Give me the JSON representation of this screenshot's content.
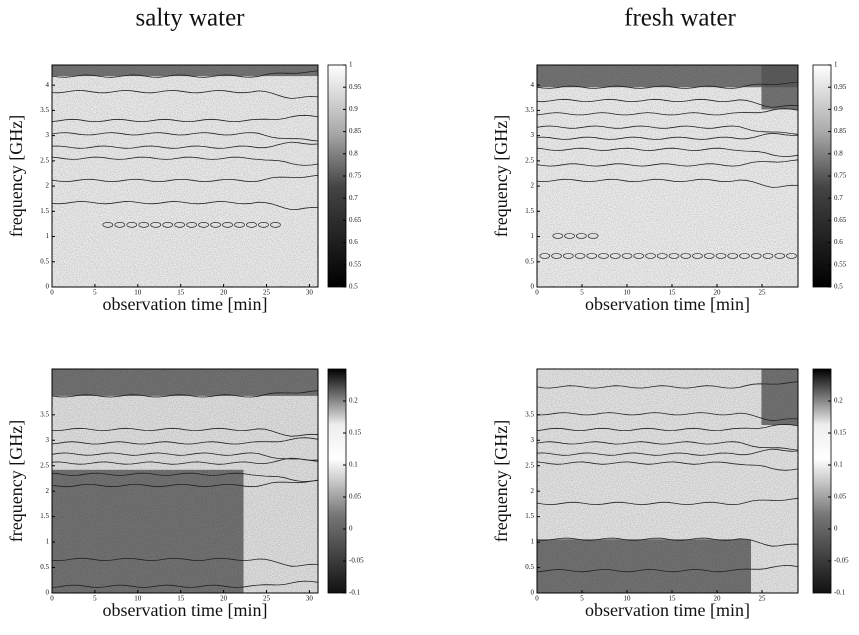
{
  "chart_data": [
    {
      "type": "contour",
      "title": "salty water",
      "xlabel": "observation time [min]",
      "ylabel": "frequency [GHz]",
      "xlim": [
        0,
        31
      ],
      "xticks": [
        0,
        5,
        10,
        15,
        20,
        25,
        30
      ],
      "ylim": [
        0,
        4.4
      ],
      "yticks": [
        0,
        0.5,
        1,
        1.5,
        2,
        2.5,
        3,
        3.5,
        4
      ],
      "clim": [
        0.5,
        1
      ],
      "cticks": [
        0.5,
        0.55,
        0.6,
        0.65,
        0.7,
        0.75,
        0.8,
        0.85,
        0.9,
        0.95,
        1
      ]
    },
    {
      "type": "contour",
      "title": "fresh water",
      "xlabel": "observation time [min]",
      "ylabel": "frequency [GHz]",
      "xlim": [
        0,
        29
      ],
      "xticks": [
        0,
        5,
        10,
        15,
        20,
        25
      ],
      "ylim": [
        0,
        4.4
      ],
      "yticks": [
        0,
        0.5,
        1,
        1.5,
        2,
        2.5,
        3,
        3.5,
        4
      ],
      "clim": [
        0.5,
        1
      ],
      "cticks": [
        0.5,
        0.55,
        0.6,
        0.65,
        0.7,
        0.75,
        0.8,
        0.85,
        0.9,
        0.95,
        1
      ]
    },
    {
      "type": "contour",
      "xlabel": "observation time [min]",
      "ylabel": "frequency [GHz]",
      "xlim": [
        0,
        31
      ],
      "xticks": [
        0,
        5,
        10,
        15,
        20,
        25,
        30
      ],
      "ylim": [
        0,
        4.4
      ],
      "yticks": [
        0,
        0.5,
        1,
        1.5,
        2,
        2.5,
        3,
        3.5
      ],
      "clim": [
        -0.1,
        0.25
      ],
      "cticks": [
        -0.1,
        -0.05,
        0,
        0.05,
        0.1,
        0.15,
        0.2
      ]
    },
    {
      "type": "contour",
      "xlabel": "observation time [min]",
      "ylabel": "frequency [GHz]",
      "xlim": [
        0,
        29
      ],
      "xticks": [
        0,
        5,
        10,
        15,
        20,
        25
      ],
      "ylim": [
        0,
        4.4
      ],
      "yticks": [
        0,
        0.5,
        1,
        1.5,
        2,
        2.5,
        3,
        3.5
      ],
      "clim": [
        -0.1,
        0.25
      ],
      "cticks": [
        -0.1,
        -0.05,
        0,
        0.05,
        0.1,
        0.15,
        0.2
      ]
    }
  ]
}
